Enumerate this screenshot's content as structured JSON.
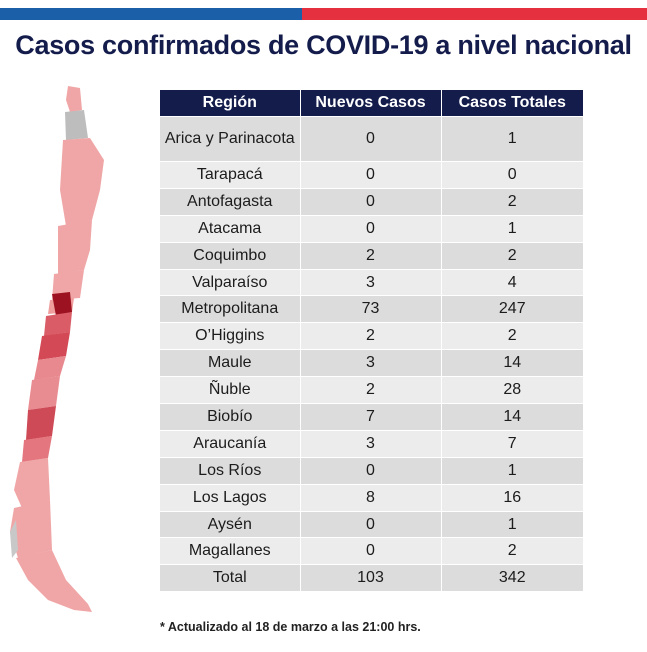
{
  "title": "Casos confirmados de COVID-19 a nivel nacional",
  "colors": {
    "flag_blue": "#1b5fa8",
    "flag_red": "#e5313f",
    "header": "#141c4c"
  },
  "table": {
    "headers": [
      "Región",
      "Nuevos Casos",
      "Casos Totales"
    ],
    "rows": [
      [
        "Arica y Parinacota",
        "0",
        "1"
      ],
      [
        "Tarapacá",
        "0",
        "0"
      ],
      [
        "Antofagasta",
        "0",
        "2"
      ],
      [
        "Atacama",
        "0",
        "1"
      ],
      [
        "Coquimbo",
        "2",
        "2"
      ],
      [
        "Valparaíso",
        "3",
        "4"
      ],
      [
        "Metropolitana",
        "73",
        "247"
      ],
      [
        "O’Higgins",
        "2",
        "2"
      ],
      [
        "Maule",
        "3",
        "14"
      ],
      [
        "Ñuble",
        "2",
        "28"
      ],
      [
        "Biobío",
        "7",
        "14"
      ],
      [
        "Araucanía",
        "3",
        "7"
      ],
      [
        "Los Ríos",
        "0",
        "1"
      ],
      [
        "Los Lagos",
        "8",
        "16"
      ],
      [
        "Aysén",
        "0",
        "1"
      ],
      [
        "Magallanes",
        "0",
        "2"
      ],
      [
        "Total",
        "103",
        "342"
      ]
    ]
  },
  "footnote": "* Actualizado al 18 de marzo a las 21:00 hrs."
}
